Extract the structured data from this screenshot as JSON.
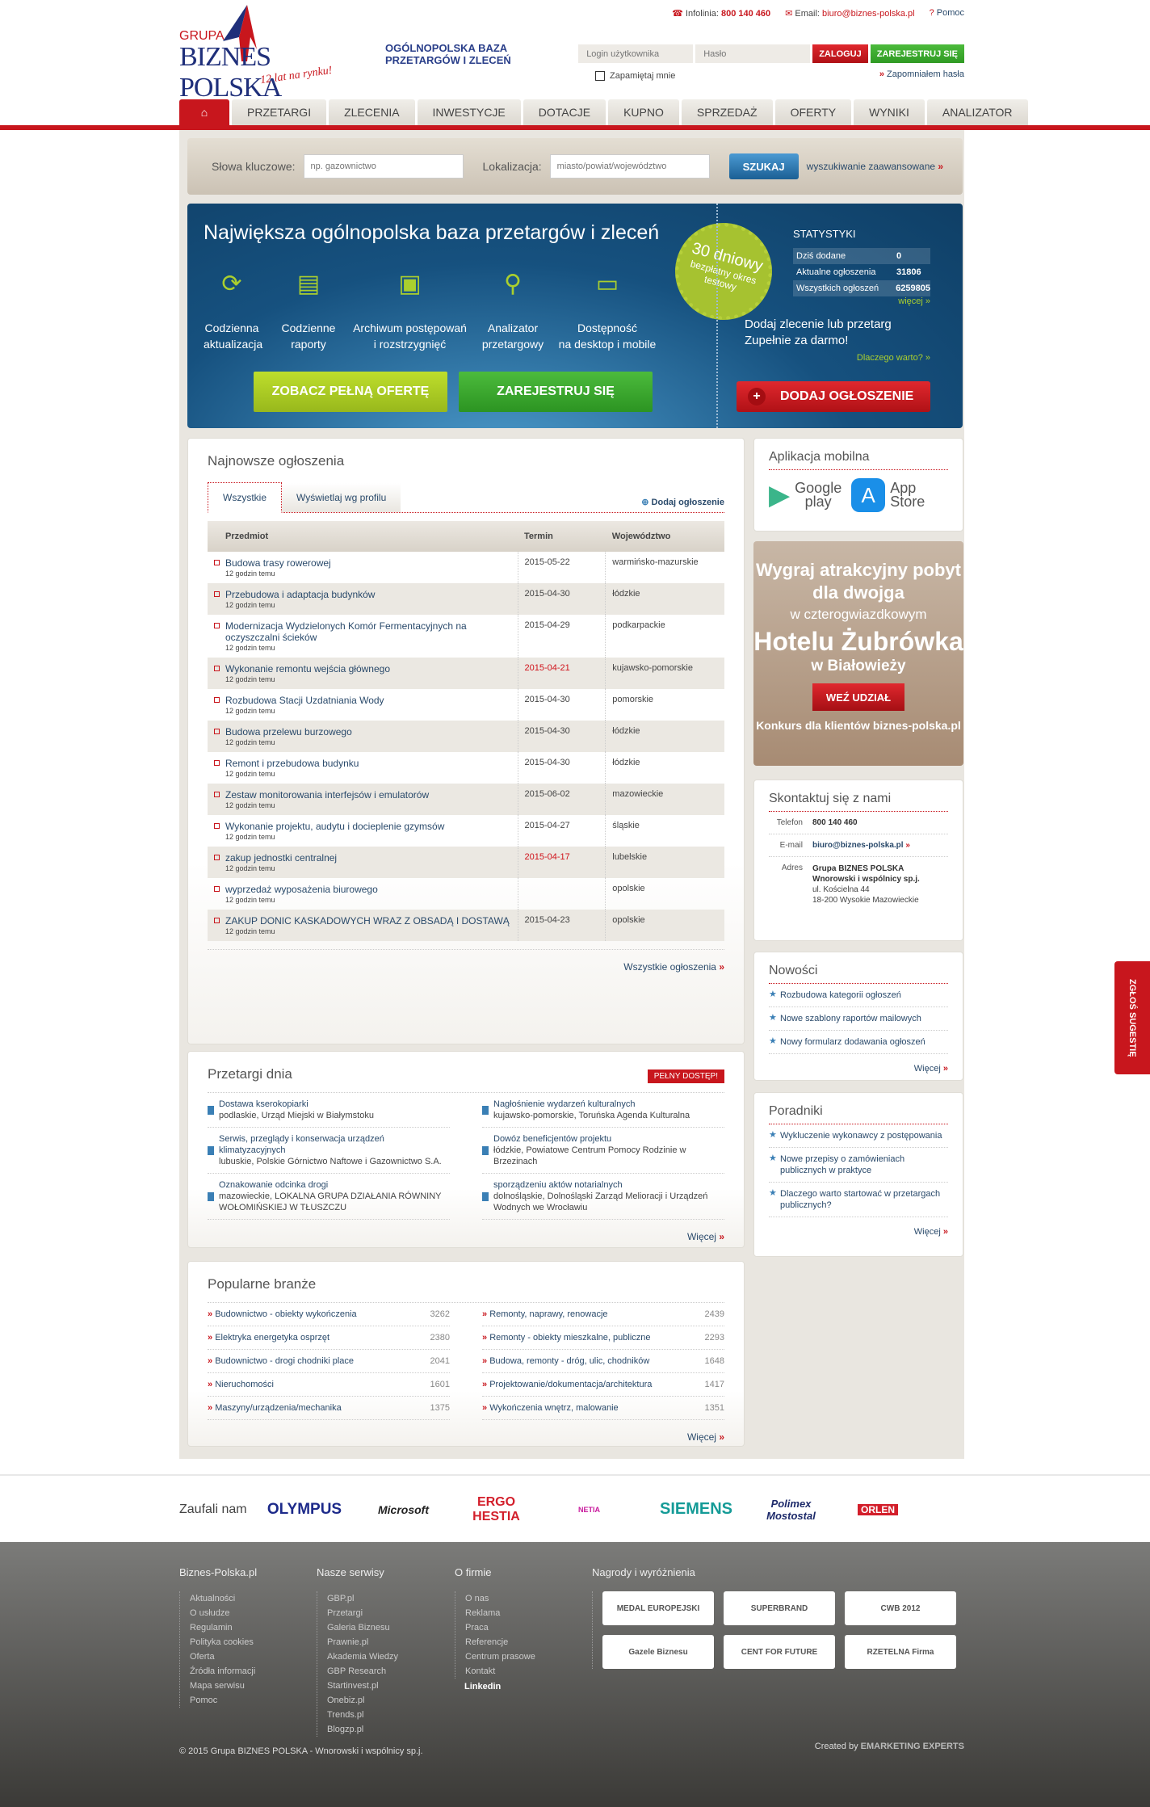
{
  "header": {
    "logo": {
      "line1": "GRUPA",
      "line2": "BIZNES POLSKA",
      "slogan": "12 lat na rynku!"
    },
    "tagline": "OGÓLNOPOLSKA BAZA PRZETARGÓW I ZLECEŃ",
    "infoline_label": "Infolinia:",
    "infoline": "800 140 460",
    "email_label": "Email:",
    "email": "biuro@biznes-polska.pl",
    "help": "Pomoc",
    "login_placeholder": "Login użytkownika",
    "password_placeholder": "Hasło",
    "login_btn": "ZALOGUJ",
    "register_btn": "ZAREJESTRUJ SIĘ",
    "remember": "Zapamiętaj mnie",
    "forgot": "Zapomniałem hasła"
  },
  "nav": [
    "PRZETARGI",
    "ZLECENIA",
    "INWESTYCJE",
    "DOTACJE",
    "KUPNO",
    "SPRZEDAŻ",
    "OFERTY",
    "WYNIKI",
    "ANALIZATOR"
  ],
  "search": {
    "kw_label": "Słowa kluczowe:",
    "kw_placeholder": "np. gazownictwo",
    "loc_label": "Lokalizacja:",
    "loc_placeholder": "miasto/powiat/województwo",
    "btn": "SZUKAJ",
    "advanced": "wyszukiwanie zaawansowane"
  },
  "hero": {
    "title": "Największa ogólnopolska baza przetargów i zleceń",
    "features": [
      {
        "l1": "Codzienna",
        "l2": "aktualizacja"
      },
      {
        "l1": "Codzienne",
        "l2": "raporty"
      },
      {
        "l1": "Archiwum postępowań",
        "l2": "i rozstrzygnięć"
      },
      {
        "l1": "Analizator",
        "l2": "przetargowy"
      },
      {
        "l1": "Dostępność",
        "l2": "na desktop i mobile"
      }
    ],
    "offer_btn": "ZOBACZ PEŁNĄ OFERTĘ",
    "register_btn": "ZAREJESTRUJ SIĘ",
    "badge": {
      "days": "30 dniowy",
      "text": "bezpłatny okres testowy"
    },
    "stats_title": "STATYSTYKI",
    "stats": [
      {
        "label": "Dziś dodane",
        "value": "0"
      },
      {
        "label": "Aktualne ogłoszenia",
        "value": "31806"
      },
      {
        "label": "Wszystkich ogłoszeń",
        "value": "6259805"
      }
    ],
    "stats_more": "więcej »",
    "promo1": "Dodaj zlecenie lub przetarg",
    "promo2": "Zupełnie za darmo!",
    "why": "Dlaczego warto? »",
    "add_btn": "DODAJ OGŁOSZENIE"
  },
  "latest": {
    "title": "Najnowsze ogłoszenia",
    "tabs": [
      "Wszystkie",
      "Wyświetlaj wg profilu"
    ],
    "add": "Dodaj ogłoszenie",
    "columns": [
      "Przedmiot",
      "Termin",
      "Województwo"
    ],
    "rows": [
      {
        "title": "Budowa trasy rowerowej",
        "ago": "12 godzin temu",
        "date": "2015-05-22",
        "region": "warmińsko-mazurskie"
      },
      {
        "title": "Przebudowa i adaptacja budynków",
        "ago": "12 godzin temu",
        "date": "2015-04-30",
        "region": "łódzkie"
      },
      {
        "title": "Modernizacja Wydzielonych Komór Fermentacyjnych na oczyszczalni ścieków",
        "ago": "12 godzin temu",
        "date": "2015-04-29",
        "region": "podkarpackie"
      },
      {
        "title": "Wykonanie remontu wejścia głównego",
        "ago": "12 godzin temu",
        "date": "2015-04-21",
        "region": "kujawsko-pomorskie",
        "urgent": true
      },
      {
        "title": "Rozbudowa Stacji Uzdatniania Wody",
        "ago": "12 godzin temu",
        "date": "2015-04-30",
        "region": "pomorskie"
      },
      {
        "title": "Budowa przelewu burzowego",
        "ago": "12 godzin temu",
        "date": "2015-04-30",
        "region": "łódzkie"
      },
      {
        "title": "Remont i przebudowa budynku",
        "ago": "12 godzin temu",
        "date": "2015-04-30",
        "region": "łódzkie"
      },
      {
        "title": "Zestaw monitorowania interfejsów i emulatorów",
        "ago": "12 godzin temu",
        "date": "2015-06-02",
        "region": "mazowieckie"
      },
      {
        "title": "Wykonanie projektu, audytu i docieplenie gzymsów",
        "ago": "12 godzin temu",
        "date": "2015-04-27",
        "region": "śląskie"
      },
      {
        "title": "zakup jednostki centralnej",
        "ago": "12 godzin temu",
        "date": "2015-04-17",
        "region": "lubelskie",
        "urgent": true
      },
      {
        "title": "wyprzedaż wyposażenia biurowego",
        "ago": "12 godzin temu",
        "date": "",
        "region": "opolskie"
      },
      {
        "title": "ZAKUP DONIC KASKADOWYCH WRAZ Z OBSADĄ I DOSTAWĄ",
        "ago": "12 godzin temu",
        "date": "2015-04-23",
        "region": "opolskie"
      }
    ],
    "all": "Wszystkie ogłoszenia"
  },
  "daily": {
    "title": "Przetargi dnia",
    "full_access": "PEŁNY DOSTĘP!",
    "items": [
      {
        "title": "Dostawa kserokopiarki",
        "desc": "podlaskie, Urząd Miejski w Białymstoku"
      },
      {
        "title": "Nagłośnienie wydarzeń kulturalnych",
        "desc": "kujawsko-pomorskie, Toruńska Agenda Kulturalna"
      },
      {
        "title": "Serwis, przeglądy i konserwacja urządzeń klimatyzacyjnych",
        "desc": "lubuskie, Polskie Górnictwo Naftowe i Gazownictwo S.A."
      },
      {
        "title": "Dowóz beneficjentów projektu",
        "desc": "łódzkie, Powiatowe Centrum Pomocy Rodzinie w Brzezinach"
      },
      {
        "title": "Oznakowanie odcinka drogi",
        "desc": "mazowieckie, LOKALNA GRUPA DZIAŁANIA RÓWNINY WOŁOMIŃSKIEJ W TŁUSZCZU"
      },
      {
        "title": "sporządzeniu aktów notarialnych",
        "desc": "dolnośląskie, Dolnośląski Zarząd Melioracji i Urządzeń Wodnych we Wrocławiu"
      }
    ],
    "more": "Więcej"
  },
  "branches": {
    "title": "Popularne branże",
    "items": [
      {
        "name": "Budownictwo - obiekty wykończenia",
        "count": "3262"
      },
      {
        "name": "Remonty, naprawy, renowacje",
        "count": "2439"
      },
      {
        "name": "Elektryka energetyka osprzęt",
        "count": "2380"
      },
      {
        "name": "Remonty - obiekty mieszkalne, publiczne",
        "count": "2293"
      },
      {
        "name": "Budownictwo - drogi chodniki place",
        "count": "2041"
      },
      {
        "name": "Budowa, remonty - dróg, ulic, chodników",
        "count": "1648"
      },
      {
        "name": "Nieruchomości",
        "count": "1601"
      },
      {
        "name": "Projektowanie/dokumentacja/architektura",
        "count": "1417"
      },
      {
        "name": "Maszyny/urządzenia/mechanika",
        "count": "1375"
      },
      {
        "name": "Wykończenia wnętrz, malowanie",
        "count": "1351"
      }
    ],
    "more": "Więcej"
  },
  "sidebar": {
    "mobile": {
      "title": "Aplikacja mobilna",
      "google1": "Google",
      "google2": "play",
      "apple1": "App",
      "apple2": "Store"
    },
    "contest": {
      "l1": "Wygraj atrakcyjny pobyt",
      "l2": "dla dwojga",
      "l3": "w czterogwiazdkowym",
      "l4": "Hotelu Żubrówka",
      "l5": "w Białowieży",
      "btn": "WEŹ UDZIAŁ",
      "footer": "Konkurs dla klientów biznes-polska.pl"
    },
    "contact": {
      "title": "Skontaktuj się z nami",
      "phone_label": "Telefon",
      "phone": "800 140 460",
      "email_label": "E-mail",
      "email": "biuro@biznes-polska.pl",
      "address_label": "Adres",
      "company1": "Grupa BIZNES POLSKA",
      "company2": "Wnorowski i wspólnicy sp.j.",
      "street": "ul. Kościelna 44",
      "city": "18-200 Wysokie Mazowieckie"
    },
    "news": {
      "title": "Nowości",
      "items": [
        "Rozbudowa kategorii ogłoszeń",
        "Nowe szablony raportów mailowych",
        "Nowy formularz dodawania ogłoszeń"
      ],
      "more": "Więcej"
    },
    "guides": {
      "title": "Poradniki",
      "items": [
        "Wykluczenie wykonawcy z postępowania",
        "Nowe przepisy o zamówieniach publicznych w praktyce",
        "Dlaczego warto startować w przetargach publicznych?"
      ],
      "more": "Więcej"
    },
    "suggest": "ZGŁOŚ SUGESTIĘ"
  },
  "partners": {
    "label": "Zaufali nam",
    "logos": [
      "OLYMPUS",
      "Microsoft",
      "ERGO HESTIA",
      "NETIA",
      "SIEMENS",
      "Polimex Mostostal",
      "ORLEN"
    ]
  },
  "footer": {
    "cols": [
      {
        "title": "Biznes-Polska.pl",
        "links": [
          "Aktualności",
          "O usłudze",
          "Regulamin",
          "Polityka cookies",
          "Oferta",
          "Źródła informacji",
          "Mapa serwisu",
          "Pomoc"
        ]
      },
      {
        "title": "Nasze serwisy",
        "links": [
          "GBP.pl",
          "Przetargi",
          "Galeria Biznesu",
          "Prawnie.pl",
          "Akademia Wiedzy",
          "GBP Research",
          "Startinvest.pl",
          "Onebiz.pl",
          "Trends.pl",
          "Blogzp.pl"
        ]
      },
      {
        "title": "O firmie",
        "links": [
          "O nas",
          "Reklama",
          "Praca",
          "Referencje",
          "Centrum prasowe",
          "Kontakt"
        ]
      }
    ],
    "linkedin": "Linkedin",
    "awards_title": "Nagrody i wyróżnienia",
    "awards": [
      "MEDAL EUROPEJSKI",
      "SUPERBRAND",
      "CWB 2012",
      "Gazele Biznesu",
      "CENT FOR FUTURE",
      "RZETELNA Firma"
    ],
    "copyright": "© 2015 Grupa BIZNES POLSKA - Wnorowski i wspólnicy sp.j.",
    "created_by": "Created by",
    "agency": "EMARKETING EXPERTS"
  },
  "colors": {
    "brand_red": "#c8161d",
    "link_blue": "#2a4a6b",
    "hero_blue": "#16517f",
    "accent_green": "#aacf2e"
  }
}
